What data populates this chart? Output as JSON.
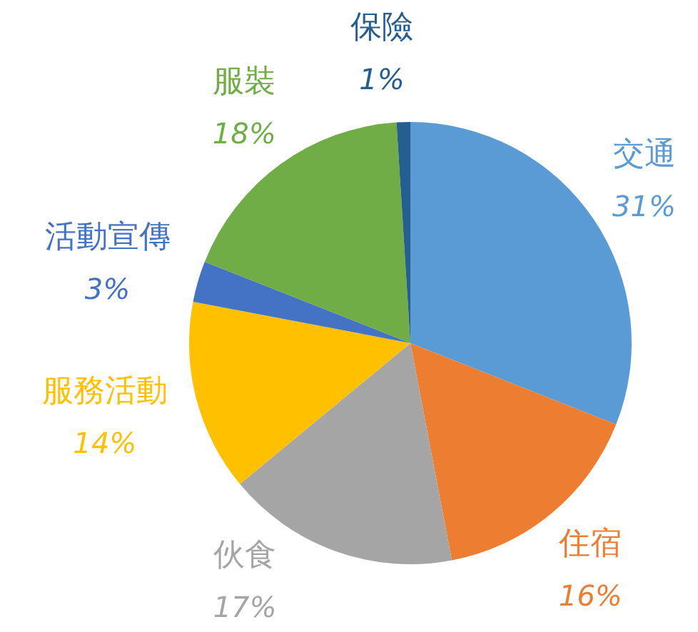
{
  "chart_data": {
    "type": "pie",
    "categories": [
      "交通",
      "住宿",
      "伙食",
      "服務活動",
      "活動宣傳",
      "服裝",
      "保險"
    ],
    "values": [
      31,
      16,
      17,
      14,
      3,
      18,
      1
    ],
    "value_labels": [
      "31%",
      "16%",
      "17%",
      "14%",
      "3%",
      "18%",
      "1%"
    ],
    "colors": [
      "#5b9bd5",
      "#ed7d31",
      "#a5a5a5",
      "#ffc000",
      "#4472c4",
      "#70ad47",
      "#255e91"
    ]
  }
}
